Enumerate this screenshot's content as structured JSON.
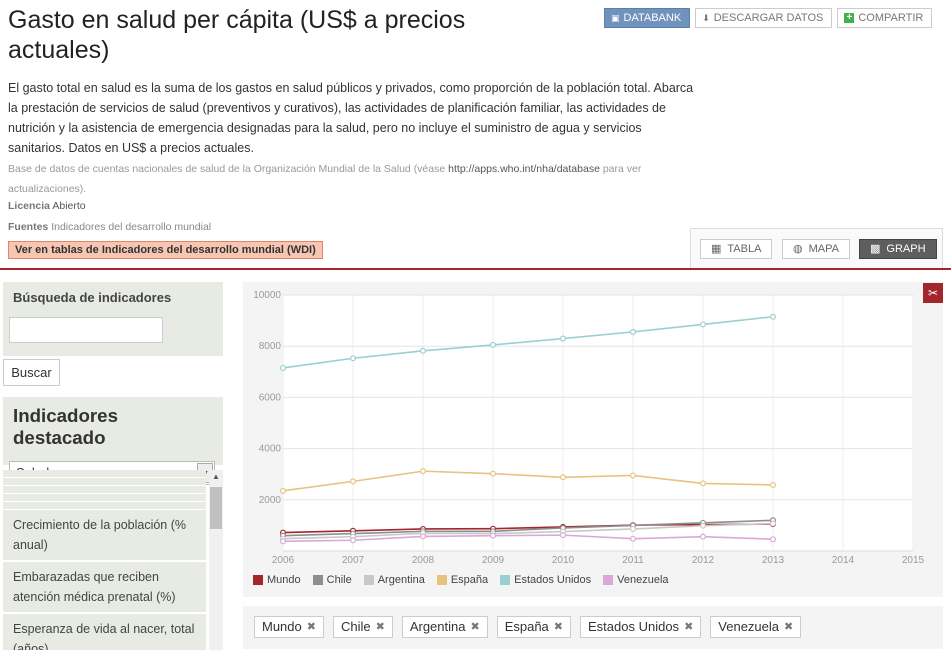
{
  "page": {
    "title": "Gasto en salud per cápita (US$ a precios actuales)",
    "description": "El gasto total en salud es la suma de los gastos en salud públicos y privados, como proporción de la población total. Abarca la prestación de servicios de salud (preventivos y curativos), las actividades de planificación familiar, las actividades de nutrición y la asistencia de emergencia designadas para la salud, pero no incluye el suministro de agua y servicios sanitarios. Datos en US$ a precios actuales.",
    "source_text": "Base de datos de cuentas nacionales de salud de la Organización Mundial de la Salud (véase",
    "source_url": "http://apps.who.int/nha/database",
    "source_after": "para ver actualizaciones).",
    "license_label": "Licencia",
    "license_value": "Abierto",
    "sources_label": "Fuentes",
    "sources_value": "Indicadores del desarrollo mundial",
    "wdi_link": "Ver en tablas de Indicadores del desarrollo mundial (WDI)"
  },
  "actions": {
    "databank": "DATABANK",
    "download": "DESCARGAR DATOS",
    "share": "COMPARTIR"
  },
  "view_tabs": {
    "table": "TABLA",
    "map": "MAPA",
    "graph": "GRAPH"
  },
  "sidebar": {
    "search_title": "Búsqueda de indicadores",
    "search_value": "",
    "search_button": "Buscar",
    "featured_title": "Indicadores destacado",
    "featured_selected": "Salud",
    "items": [
      "Crecimiento de la población (% anual)",
      "Embarazadas que reciben atención médica prenatal (%)",
      "Esperanza de vida al nacer, total (años)"
    ]
  },
  "tags": [
    "Mundo",
    "Chile",
    "Argentina",
    "España",
    "Estados Unidos",
    "Venezuela"
  ],
  "colors": {
    "accent_red": "#a4262c",
    "databank_blue": "#6f93bc"
  },
  "chart_data": {
    "type": "line",
    "x": [
      2006,
      2007,
      2008,
      2009,
      2010,
      2011,
      2012,
      2013
    ],
    "x_ticks": [
      "2006",
      "2007",
      "2008",
      "2009",
      "2010",
      "2011",
      "2012",
      "2013",
      "2014",
      "2015"
    ],
    "xlim": [
      2006,
      2015
    ],
    "ylim": [
      0,
      10000
    ],
    "y_ticks": [
      "2000",
      "4000",
      "6000",
      "8000",
      "10000"
    ],
    "grid": true,
    "legend_position": "bottom-left",
    "series": [
      {
        "name": "Mundo",
        "color": "#a4262c",
        "values": [
          720,
          790,
          860,
          870,
          940,
          1010,
          1030,
          1050
        ]
      },
      {
        "name": "Chile",
        "color": "#8e8e8e",
        "values": [
          600,
          680,
          770,
          770,
          900,
          1000,
          1100,
          1200
        ]
      },
      {
        "name": "Argentina",
        "color": "#c8c8c8",
        "values": [
          480,
          560,
          690,
          680,
          760,
          860,
          990,
          1070
        ]
      },
      {
        "name": "España",
        "color": "#e8c27e",
        "values": [
          2350,
          2720,
          3120,
          3020,
          2880,
          2950,
          2640,
          2580
        ]
      },
      {
        "name": "Estados Unidos",
        "color": "#9ccfcf",
        "values": [
          7150,
          7530,
          7820,
          8050,
          8300,
          8560,
          8850,
          9150
        ]
      },
      {
        "name": "Venezuela",
        "color": "#d9a8d9",
        "values": [
          380,
          420,
          570,
          600,
          620,
          480,
          560,
          460
        ]
      }
    ]
  }
}
